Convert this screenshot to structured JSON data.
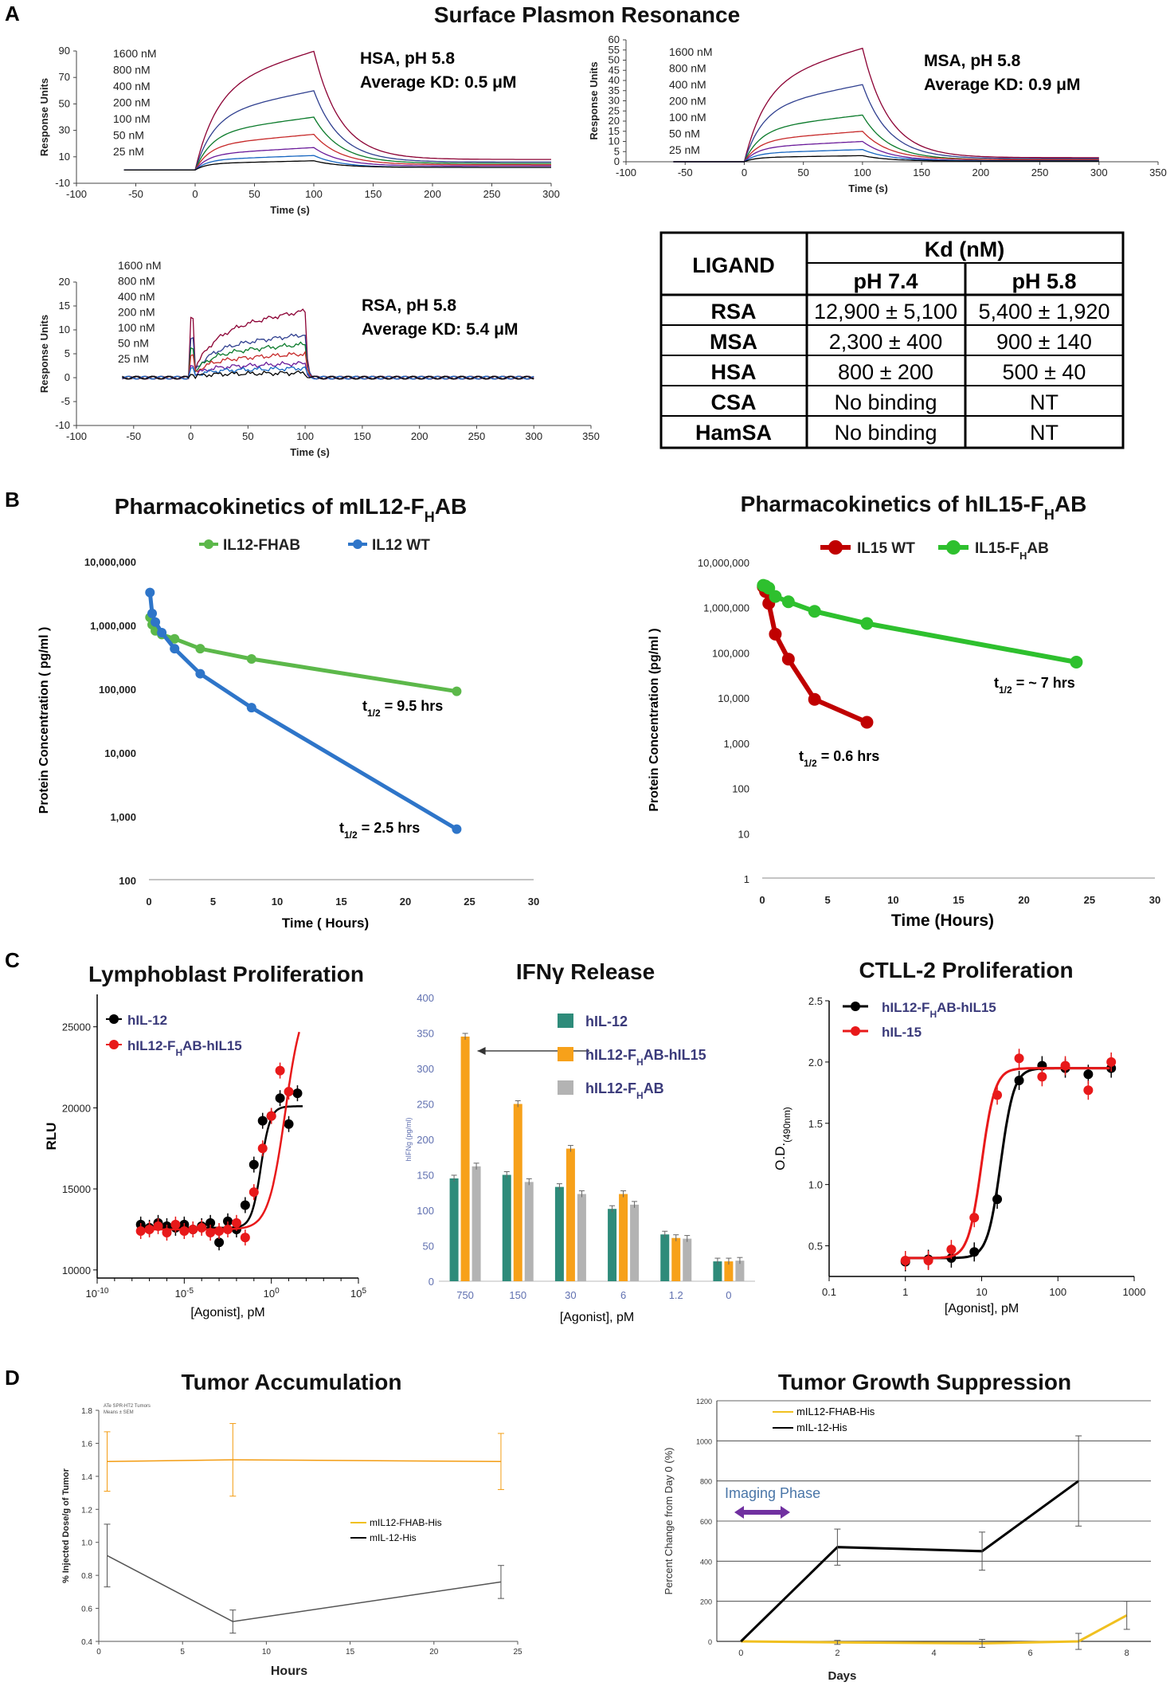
{
  "panel_labels": [
    "A",
    "B",
    "C",
    "D"
  ],
  "texts": {
    "spr_title": "Surface Plasmon Resonance",
    "table": {
      "header_ligand": "LIGAND",
      "header_kd": "Kd (nM)",
      "header_ph74": "pH 7.4",
      "header_ph58": "pH 5.8",
      "rows": [
        {
          "ligand": "RSA",
          "ph74": "12,900 ± 5,100",
          "ph58": "5,400 ± 1,920"
        },
        {
          "ligand": "MSA",
          "ph74": "2,300 ± 400",
          "ph58": "900 ± 140"
        },
        {
          "ligand": "HSA",
          "ph74": "800 ± 200",
          "ph58": "500 ± 40"
        },
        {
          "ligand": "CSA",
          "ph74": "No binding",
          "ph58": "NT"
        },
        {
          "ligand": "HamSA",
          "ph74": "No binding",
          "ph58": "NT"
        }
      ]
    },
    "pk_m_title_main": "Pharmacokinetics of mIL12-F",
    "pk_m_title_sub": "H",
    "pk_m_title_end": "AB",
    "pk_h_title_main": "Pharmacokinetics of hIL15-F",
    "pk_h_title_sub": "H",
    "pk_h_title_end": "AB",
    "pk_h_legend": [
      "IL15 WT",
      "IL15-F",
      "H",
      "AB"
    ],
    "pk_m_t1": [
      "t",
      "1/2",
      " = 9.5 hrs"
    ],
    "pk_m_t2": [
      "t",
      "1/2",
      " = 2.5 hrs"
    ],
    "pk_h_t1": [
      "t",
      "1/2",
      " = ~ 7 hrs"
    ],
    "pk_h_t2": [
      "t",
      "1/2",
      " = 0.6 hrs"
    ],
    "lympho_title": "Lymphoblast Proliferation",
    "lympho_legend": [
      "hIL-12",
      "hIL12-F",
      "H",
      "AB-hIL15"
    ],
    "ifn_title": "IFNγ Release",
    "ifn_legend": [
      "hIL-12",
      "hIL12-F",
      "H",
      "AB-hIL15",
      "hIL12-F",
      "H",
      "AB"
    ],
    "ctll_title": "CTLL-2 Proliferation",
    "ctll_legend": [
      "hIL12-F",
      "H",
      "AB-hIL15",
      "hIL-15"
    ],
    "ctll_ylabel": [
      "O.D.",
      "(490nm)"
    ],
    "tumor_acc_title": "Tumor Accumulation",
    "tumor_acc_tiny": [
      "ATe SPR-HT2 Tumors",
      "Means ± SEM"
    ],
    "tumor_growth_title": "Tumor Growth Suppression",
    "imaging_phase": "Imaging Phase"
  },
  "colors": {
    "spr": [
      "#8b0033",
      "#2f3f8f",
      "#0a7a2a",
      "#c62828",
      "#6a1b9a",
      "#1565c0",
      "#000000"
    ],
    "pk_green": "#5cb84a",
    "pk_blue": "#2e75c9",
    "pk_red": "#c00000",
    "pk_bright_green": "#2ec02e",
    "ifn_teal": "#2e8b7a",
    "ifn_orange": "#f7a11a",
    "ifn_gray": "#b3b3b3",
    "curve_red": "#e8191a",
    "tumor_orange": "#f39c12",
    "tumor_gold": "#f0c020",
    "purple": "#7030a0"
  },
  "chart_data": [
    {
      "id": "spr_hsa",
      "type": "line",
      "title": "HSA, pH 5.8",
      "subtitle": "Average KD: 0.5 μM",
      "xlabel": "Time (s)",
      "ylabel": "Response Units",
      "xlim": [
        -100,
        300
      ],
      "ylim": [
        -10,
        90
      ],
      "xticks": [
        -100,
        -50,
        0,
        50,
        100,
        150,
        200,
        250,
        300
      ],
      "yticks": [
        -10,
        10,
        30,
        50,
        70,
        90
      ],
      "concentrations": [
        "1600 nM",
        "800 nM",
        "400 nM",
        "200 nM",
        "100 nM",
        "50 nM",
        "25 nM"
      ],
      "plateau": [
        90,
        60,
        40,
        27,
        17,
        11,
        7
      ],
      "baseline_end": [
        8,
        6,
        5,
        4,
        3,
        2,
        2
      ],
      "assoc_start": 0,
      "dissoc_start": 100,
      "end": 300,
      "start": -60
    },
    {
      "id": "spr_msa",
      "type": "line",
      "title": "MSA, pH 5.8",
      "subtitle": "Average KD: 0.9 μM",
      "xlabel": "Time (s)",
      "ylabel": "Response Units",
      "xlim": [
        -100,
        350
      ],
      "ylim": [
        0,
        60
      ],
      "xticks": [
        -100,
        -50,
        0,
        50,
        100,
        150,
        200,
        250,
        300,
        350
      ],
      "yticks": [
        0,
        5,
        10,
        15,
        20,
        25,
        30,
        35,
        40,
        45,
        50,
        55,
        60
      ],
      "concentrations": [
        "1600 nM",
        "800 nM",
        "400 nM",
        "200 nM",
        "100 nM",
        "50 nM",
        "25 nM"
      ],
      "plateau": [
        56,
        38,
        23,
        15,
        10,
        6,
        3
      ],
      "baseline_end": [
        2,
        1.5,
        1,
        1,
        0.5,
        0.5,
        0.3
      ],
      "assoc_start": 0,
      "dissoc_start": 100,
      "end": 300,
      "start": -60
    },
    {
      "id": "spr_rsa",
      "type": "line",
      "title": "RSA, pH 5.8",
      "subtitle": "Average KD: 5.4 μM",
      "xlabel": "Time (s)",
      "ylabel": "Response Units",
      "xlim": [
        -100,
        350
      ],
      "ylim": [
        -10,
        20
      ],
      "xticks": [
        -100,
        -50,
        0,
        50,
        100,
        150,
        200,
        250,
        300,
        350
      ],
      "yticks": [
        -10,
        -5,
        0,
        5,
        10,
        15,
        20
      ],
      "concentrations": [
        "1600 nM",
        "800 nM",
        "400 nM",
        "200 nM",
        "100 nM",
        "50 nM",
        "25 nM"
      ],
      "plateau": [
        14,
        9,
        7,
        5,
        3,
        2,
        1
      ],
      "baseline_end": [
        0,
        0,
        0,
        0,
        0,
        0,
        0
      ],
      "assoc_start": 0,
      "dissoc_start": 100,
      "end": 300,
      "start": -60
    },
    {
      "id": "pk_mil12",
      "type": "line",
      "xlabel": "Time ( Hours)",
      "ylabel": "Protein Concentration ( pg/ml )",
      "xlim": [
        0,
        30
      ],
      "ylim": [
        100,
        10000000
      ],
      "yscale": "log",
      "xticks": [
        0,
        5,
        10,
        15,
        20,
        25,
        30
      ],
      "ytick_labels": [
        "100",
        "1,000",
        "10,000",
        "100,000",
        "1,000,000",
        "10,000,000"
      ],
      "series": [
        {
          "name": "IL12-FHAB",
          "x": [
            0.08,
            0.25,
            0.5,
            1,
            2,
            4,
            8,
            24
          ],
          "y": [
            1300000,
            1000000,
            800000,
            700000,
            600000,
            420000,
            290000,
            90000
          ]
        },
        {
          "name": "IL12 WT",
          "x": [
            0.08,
            0.25,
            0.5,
            1,
            2,
            4,
            8,
            24
          ],
          "y": [
            3200000,
            1500000,
            1100000,
            750000,
            420000,
            170000,
            50000,
            620
          ]
        }
      ]
    },
    {
      "id": "pk_hil15",
      "type": "line",
      "xlabel": "Time (Hours)",
      "ylabel": "Protein Concentration (pg/ml )",
      "xlim": [
        0,
        30
      ],
      "ylim": [
        1,
        10000000
      ],
      "yscale": "log",
      "xticks": [
        0,
        5,
        10,
        15,
        20,
        25,
        30
      ],
      "ytick_labels": [
        "1",
        "10",
        "100",
        "1,000",
        "10,000",
        "100,000",
        "1,000,000",
        "10,000,000"
      ],
      "series": [
        {
          "name": "IL15 WT",
          "x": [
            0.08,
            0.25,
            0.5,
            1,
            2,
            4,
            8
          ],
          "y": [
            2800000,
            2200000,
            1200000,
            250000,
            70000,
            9000,
            2800
          ]
        },
        {
          "name": "IL15-FHAB",
          "x": [
            0.08,
            0.25,
            0.5,
            1,
            2,
            4,
            8,
            24
          ],
          "y": [
            3000000,
            2900000,
            2600000,
            1700000,
            1300000,
            800000,
            430000,
            60000
          ]
        }
      ]
    },
    {
      "id": "lymphoblast",
      "type": "scatter",
      "xlabel": "[Agonist], pM",
      "ylabel": "RLU",
      "xlim_log10": [
        -10,
        5
      ],
      "ylim": [
        9500,
        27000
      ],
      "xtick_exps": [
        -10,
        -5,
        0,
        5
      ],
      "ytick_labels": [
        "10000",
        "15000",
        "20000",
        "25000"
      ],
      "series": [
        {
          "name": "hIL-12",
          "log10x": [
            -7.5,
            -7,
            -6.5,
            -6,
            -5.5,
            -5,
            -4.5,
            -4,
            -3.5,
            -3,
            -2.5,
            -2,
            -1.5,
            -1,
            -0.5,
            0,
            0.5,
            1,
            1.5
          ],
          "y": [
            12800,
            12600,
            12900,
            12700,
            12600,
            12800,
            12500,
            12700,
            12900,
            11700,
            13000,
            12500,
            14000,
            16500,
            19200,
            19500,
            20600,
            19000,
            20900
          ],
          "fit": {
            "bottom": 12600,
            "top": 20100,
            "logEC50": -0.6,
            "slope": 1.6
          }
        },
        {
          "name": "hIL12-FHAB-hIL15",
          "log10x": [
            -7.5,
            -7,
            -6.5,
            -6,
            -5.5,
            -5,
            -4.5,
            -4,
            -3.5,
            -3,
            -2.5,
            -2,
            -1.5,
            -1,
            -0.5,
            0,
            0.5,
            1
          ],
          "y": [
            12400,
            12500,
            12700,
            12300,
            12800,
            12400,
            12500,
            12600,
            12300,
            12400,
            12500,
            12900,
            12000,
            14800,
            17500,
            19500,
            22300,
            21000
          ],
          "fit": {
            "bottom": 12500,
            "top": 27000,
            "logEC50": 0.8,
            "slope": 0.9
          }
        }
      ]
    },
    {
      "id": "ifn_release",
      "type": "bar",
      "xlabel": "[Agonist], pM",
      "ylabel": "hIFNg (pg/ml)",
      "ylim": [
        0,
        400
      ],
      "yticks": [
        0,
        50,
        100,
        150,
        200,
        250,
        300,
        350,
        400
      ],
      "categories": [
        "750",
        "150",
        "30",
        "6",
        "1.2",
        "0"
      ],
      "series": [
        {
          "name": "hIL-12",
          "values": [
            145,
            150,
            133,
            102,
            66,
            28
          ]
        },
        {
          "name": "hIL12-FHAB-hIL15",
          "values": [
            345,
            250,
            187,
            123,
            61,
            28
          ]
        },
        {
          "name": "hIL12-FHAB",
          "values": [
            162,
            140,
            123,
            108,
            60,
            29
          ]
        }
      ]
    },
    {
      "id": "ctll2",
      "type": "scatter",
      "xlabel": "[Agonist], pM",
      "ylabel": "O.D.(490nm)",
      "xlim_log10": [
        -1,
        3
      ],
      "ylim": [
        0.25,
        2.5
      ],
      "xtick_labels": [
        "0.1",
        "1",
        "10",
        "100",
        "1000"
      ],
      "yticks": [
        0.5,
        1.0,
        1.5,
        2.0,
        2.5
      ],
      "series": [
        {
          "name": "hIL12-FHAB-hIL15",
          "x": [
            1,
            2,
            4,
            8,
            16,
            31,
            62,
            125,
            250,
            500
          ],
          "y": [
            0.37,
            0.39,
            0.4,
            0.45,
            0.88,
            1.85,
            1.97,
            1.95,
            1.9,
            1.95
          ],
          "fit": {
            "bottom": 0.4,
            "top": 1.95,
            "logEC50": 1.25,
            "slope": 5
          }
        },
        {
          "name": "hIL-15",
          "x": [
            1,
            2,
            4,
            8,
            16,
            31,
            62,
            125,
            250,
            500
          ],
          "y": [
            0.38,
            0.38,
            0.47,
            0.73,
            1.73,
            2.03,
            1.88,
            1.97,
            1.77,
            2.0
          ],
          "fit": {
            "bottom": 0.4,
            "top": 1.95,
            "logEC50": 1.0,
            "slope": 5
          }
        }
      ]
    },
    {
      "id": "tumor_accumulation",
      "type": "line",
      "xlabel": "Hours",
      "ylabel": "% Injected Dose/g of Tumor",
      "xlim": [
        0,
        25
      ],
      "ylim": [
        0.4,
        1.8
      ],
      "xticks": [
        0,
        5,
        10,
        15,
        20,
        25
      ],
      "yticks": [
        0.4,
        0.6,
        0.8,
        1.0,
        1.2,
        1.4,
        1.6,
        1.8
      ],
      "series": [
        {
          "name": "mIL12-FHAB-His",
          "x": [
            0.5,
            8,
            24
          ],
          "y": [
            1.49,
            1.5,
            1.49
          ],
          "err": [
            0.18,
            0.22,
            0.17
          ]
        },
        {
          "name": "mIL-12-His",
          "x": [
            0.5,
            8,
            24
          ],
          "y": [
            0.92,
            0.52,
            0.76
          ],
          "err": [
            0.19,
            0.07,
            0.1
          ]
        }
      ]
    },
    {
      "id": "tumor_growth",
      "type": "line",
      "xlabel": "Days",
      "ylabel": "Percent Change from Day 0 (%)",
      "xlim": [
        0,
        8
      ],
      "ylim": [
        0,
        1200
      ],
      "xticks": [
        0,
        2,
        4,
        6,
        8
      ],
      "yticks": [
        0,
        200,
        400,
        600,
        800,
        1000,
        1200
      ],
      "series": [
        {
          "name": "mIL12-FHAB-His",
          "x": [
            0,
            2,
            5,
            7,
            8
          ],
          "y": [
            0,
            -5,
            -10,
            0,
            130
          ],
          "err": [
            0,
            10,
            20,
            40,
            70
          ]
        },
        {
          "name": "mIL-12-His",
          "x": [
            0,
            2,
            5,
            7
          ],
          "y": [
            0,
            470,
            450,
            800
          ],
          "err": [
            0,
            90,
            95,
            225
          ]
        }
      ]
    }
  ]
}
